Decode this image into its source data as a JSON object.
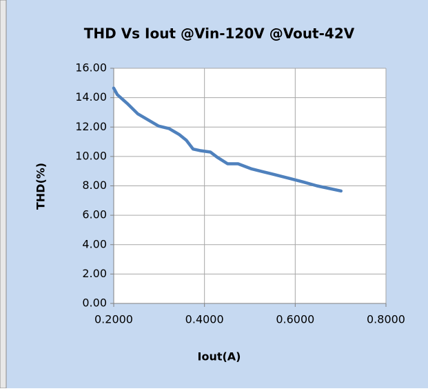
{
  "chart_data": {
    "type": "line",
    "title": "THD Vs Iout @Vin-120V @Vout-42V",
    "x_label": "Iout(A)",
    "y_label": "THD(%)",
    "x": [
      0.2,
      0.208,
      0.23,
      0.253,
      0.299,
      0.322,
      0.344,
      0.36,
      0.375,
      0.39,
      0.413,
      0.428,
      0.451,
      0.474,
      0.504,
      0.55,
      0.588,
      0.618,
      0.648,
      0.701
    ],
    "series": [
      {
        "name": "THD",
        "color": "#4f81bd",
        "values": [
          14.65,
          14.2,
          13.6,
          12.9,
          12.07,
          11.9,
          11.5,
          11.1,
          10.5,
          10.4,
          10.3,
          9.95,
          9.5,
          9.5,
          9.15,
          8.8,
          8.5,
          8.26,
          8.0,
          7.65
        ]
      }
    ],
    "xlim": [
      0.2,
      0.8
    ],
    "xticks": [
      {
        "value": 0.2,
        "label": "0.2000"
      },
      {
        "value": 0.4,
        "label": "0.4000"
      },
      {
        "value": 0.6,
        "label": "0.6000"
      },
      {
        "value": 0.8,
        "label": "0.8000"
      }
    ],
    "ylim": [
      0,
      16
    ],
    "yticks": [
      {
        "value": 0,
        "label": "0.00"
      },
      {
        "value": 2,
        "label": "2.00"
      },
      {
        "value": 4,
        "label": "4.00"
      },
      {
        "value": 6,
        "label": "6.00"
      },
      {
        "value": 8,
        "label": "8.00"
      },
      {
        "value": 10,
        "label": "10.00"
      },
      {
        "value": 12,
        "label": "12.00"
      },
      {
        "value": 14,
        "label": "14.00"
      },
      {
        "value": 16,
        "label": "16.00"
      }
    ],
    "grid": true
  }
}
